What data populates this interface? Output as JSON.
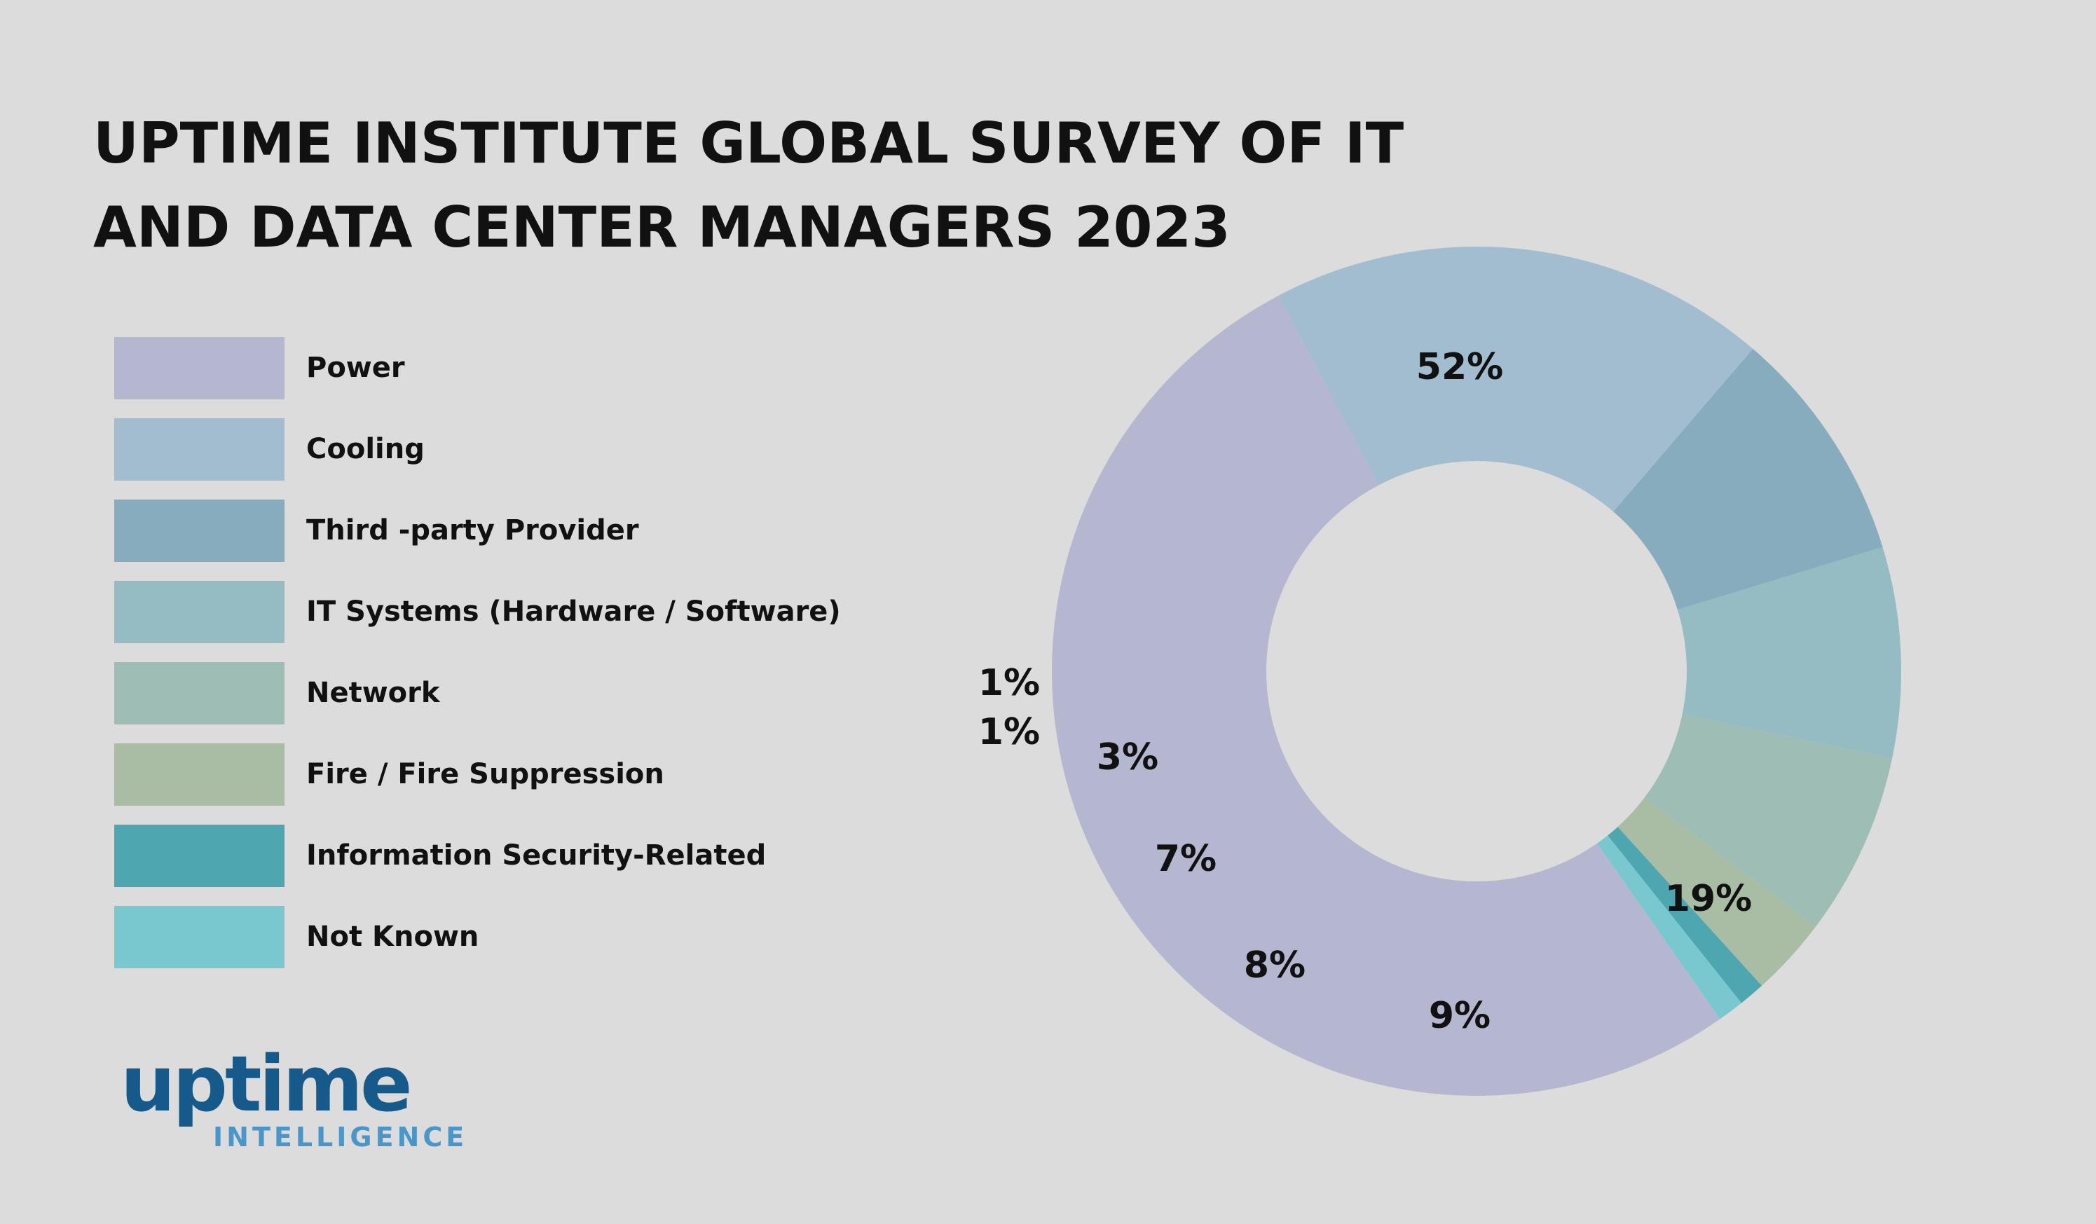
{
  "title_lines": [
    "UPTIME INSTITUTE GLOBAL SURVEY OF IT",
    "AND DATA CENTER MANAGERS 2023"
  ],
  "logo": {
    "word": "uptime",
    "subtitle": "INTELLIGENCE",
    "word_color": "#155a8a",
    "subtitle_color": "#4a96c8"
  },
  "colors": {
    "background": "#dcdcdc",
    "text": "#111111"
  },
  "chart_data": {
    "type": "pie",
    "style": "donut",
    "title": "UPTIME INSTITUTE GLOBAL SURVEY OF IT AND DATA CENTER MANAGERS 2023",
    "unit": "%",
    "legend_placement": "left",
    "slices": [
      {
        "label": "Power",
        "value": 52,
        "display": "52%",
        "color": "#b4b7cf"
      },
      {
        "label": "Cooling",
        "value": 19,
        "display": "19%",
        "color": "#a3bdd0"
      },
      {
        "label": "Third -party Provider",
        "value": 9,
        "display": "9%",
        "color": "#87acbe"
      },
      {
        "label": "IT Systems (Hardware / Software)",
        "value": 8,
        "display": "8%",
        "color": "#95bcc2"
      },
      {
        "label": "Network",
        "value": 7,
        "display": "7%",
        "color": "#9ebdb5"
      },
      {
        "label": "Fire / Fire Suppression",
        "value": 3,
        "display": "3%",
        "color": "#a9bda5"
      },
      {
        "label": "Information Security-Related",
        "value": 1,
        "display": "1%",
        "color": "#4ea6b0"
      },
      {
        "label": "Not Known",
        "value": 1,
        "display": "1%",
        "color": "#79c8d0"
      }
    ]
  }
}
